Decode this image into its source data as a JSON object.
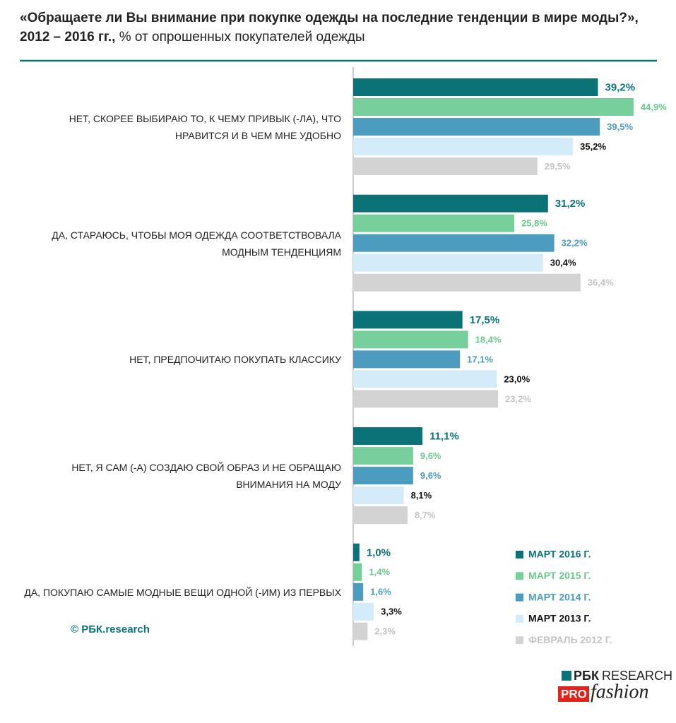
{
  "chart_data": {
    "type": "bar",
    "orientation": "horizontal",
    "title": "«Обращаете ли Вы внимание при покупке одежды на последние тенденции в мире моды?», 2012 – 2016 гг.,",
    "subtitle": "% от опрошенных покупателей одежды",
    "categories": [
      "НЕТ, СКОРЕЕ ВЫБИРАЮ ТО, К ЧЕМУ ПРИВЫК (-ЛА), ЧТО НРАВИТСЯ И В ЧЕМ МНЕ УДОБНО",
      "ДА, СТАРАЮСЬ, ЧТОБЫ МОЯ ОДЕЖДА СООТВЕТСТВОВАЛА МОДНЫМ ТЕНДЕНЦИЯМ",
      "НЕТ, ПРЕДПОЧИТАЮ ПОКУПАТЬ КЛАССИКУ",
      "НЕТ, Я САМ (-А) СОЗДАЮ СВОЙ ОБРАЗ И НЕ ОБРАЩАЮ ВНИМАНИЯ НА МОДУ",
      "ДА, ПОКУПАЮ САМЫЕ МОДНЫЕ ВЕЩИ ОДНОЙ (-ИМ) ИЗ ПЕРВЫХ"
    ],
    "series": [
      {
        "name": "МАРТ 2016 Г.",
        "color": "#0b7378",
        "label_color": "#0b7378",
        "values": [
          39.2,
          31.2,
          17.5,
          11.1,
          1.0
        ],
        "value_labels": [
          "39,2%",
          "31,2%",
          "17,5%",
          "11,1%",
          "1,0%"
        ]
      },
      {
        "name": "МАРТ 2015 Г.",
        "color": "#77d09b",
        "label_color": "#6cc790",
        "values": [
          44.9,
          25.8,
          18.4,
          9.6,
          1.4
        ],
        "value_labels": [
          "44,9%",
          "25,8%",
          "18,4%",
          "9,6%",
          "1,4%"
        ]
      },
      {
        "name": "МАРТ 2014 Г.",
        "color": "#4c9cbf",
        "label_color": "#4c9cbf",
        "values": [
          39.5,
          32.2,
          17.1,
          9.6,
          1.6
        ],
        "value_labels": [
          "39,5%",
          "32,2%",
          "17,1%",
          "9,6%",
          "1,6%"
        ]
      },
      {
        "name": "МАРТ 2013 Г.",
        "color": "#d4ebfa",
        "label_color": "#111111",
        "values": [
          35.2,
          30.4,
          23.0,
          8.1,
          3.3
        ],
        "value_labels": [
          "35,2%",
          "30,4%",
          "23,0%",
          "8,1%",
          "3,3%"
        ]
      },
      {
        "name": "ФЕВРАЛЬ 2012 Г.",
        "color": "#d3d3d3",
        "label_color": "#c4c4c4",
        "values": [
          29.5,
          36.4,
          23.2,
          8.7,
          2.3
        ],
        "value_labels": [
          "29,5%",
          "36,4%",
          "23,2%",
          "8,7%",
          "2,3%"
        ]
      }
    ]
  },
  "source": "© РБК.research",
  "logo": {
    "brand": "РБК",
    "research": "RESEARCH",
    "pro": "PRO",
    "fashion": "fashion"
  }
}
